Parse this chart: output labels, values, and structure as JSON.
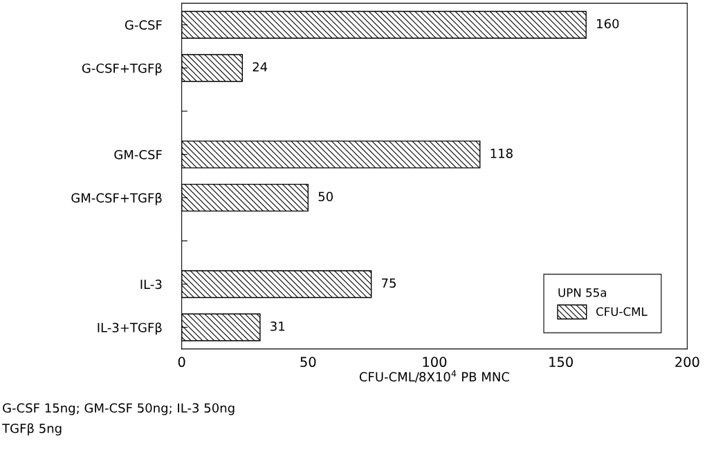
{
  "chart_data": {
    "type": "bar",
    "orientation": "horizontal",
    "xlabel": "CFU-CML/8X10$^{4}$ PB MNC",
    "categories": [
      "G-CSF",
      "G-CSF+TGFβ",
      null,
      "GM-CSF",
      "GM-CSF+TGFβ",
      null,
      "IL-3",
      "IL-3+TGFβ"
    ],
    "series": [
      {
        "name": "CFU-CML",
        "color": "#000000",
        "values": [
          160,
          24,
          null,
          118,
          50,
          null,
          75,
          31
        ]
      }
    ],
    "legend_title": "UPN 55a",
    "legend": "bottom right",
    "data_labels": true,
    "xlim": [
      0,
      200
    ],
    "xticks": [
      0,
      50,
      100,
      150,
      200
    ],
    "grid": false,
    "annotations": [
      "G-CSF 15ng; GM-CSF 50ng; IL-3 50ng",
      "TGFβ 5ng"
    ]
  }
}
